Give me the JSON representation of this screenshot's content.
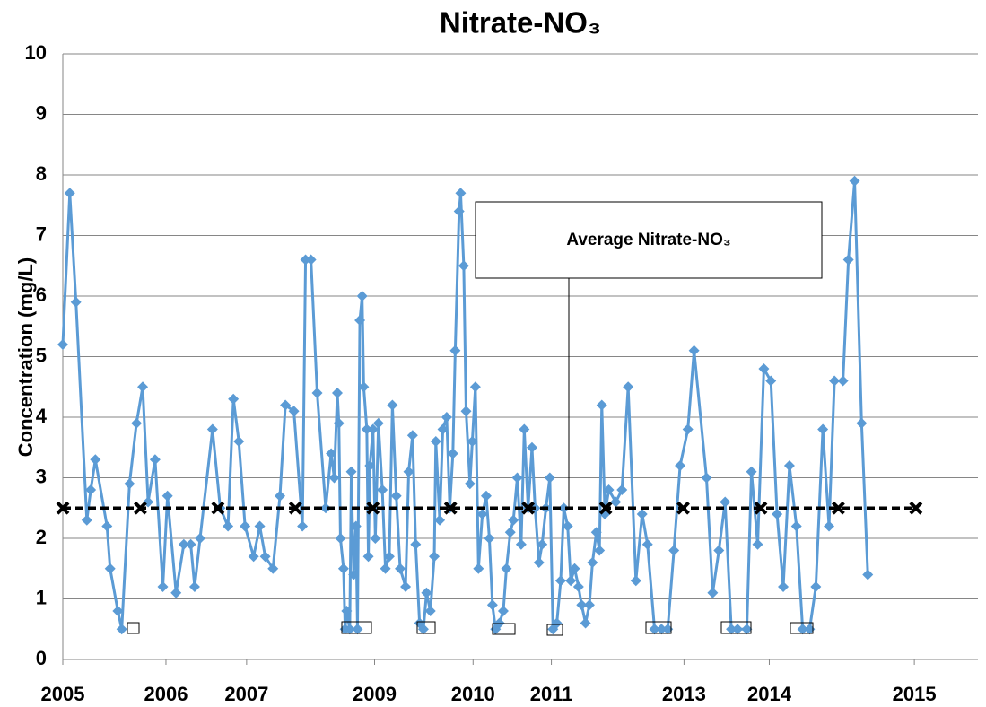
{
  "chart_data": {
    "type": "line",
    "title": "Nitrate-NO₃",
    "y_label": "Concentration (mg/L)",
    "xlim": [
      2005,
      2016.8
    ],
    "ylim": [
      0,
      10
    ],
    "yticks": [
      0,
      1,
      2,
      3,
      4,
      5,
      6,
      7,
      8,
      9,
      10
    ],
    "grid": true,
    "xticks": [
      {
        "value": 2005,
        "label": "2005"
      },
      {
        "value": 2006.33,
        "label": "2006"
      },
      {
        "value": 2007.37,
        "label": "2007"
      },
      {
        "value": 2009.02,
        "label": "2009"
      },
      {
        "value": 2010.29,
        "label": "2010"
      },
      {
        "value": 2011.3,
        "label": "2011"
      },
      {
        "value": 2013.01,
        "label": "2013"
      },
      {
        "value": 2014.11,
        "label": "2014"
      },
      {
        "value": 2015.98,
        "label": "2015"
      }
    ],
    "series": [
      {
        "color": "#5b9bd5",
        "x": [
          2005.0,
          2005.09,
          2005.17,
          2005.31,
          2005.36,
          2005.42,
          2005.57,
          2005.61,
          2005.71,
          2005.76,
          2005.86,
          2005.95,
          2006.03,
          2006.1,
          2006.19,
          2006.29,
          2006.35,
          2006.46,
          2006.56,
          2006.65,
          2006.7,
          2006.77,
          2006.93,
          2007.03,
          2007.13,
          2007.2,
          2007.27,
          2007.35,
          2007.46,
          2007.54,
          2007.61,
          2007.71,
          2007.8,
          2007.87,
          2007.98,
          2008.09,
          2008.13,
          2008.2,
          2008.28,
          2008.39,
          2008.46,
          2008.5,
          2008.54,
          2008.56,
          2008.58,
          2008.62,
          2008.64,
          2008.66,
          2008.7,
          2008.72,
          2008.75,
          2008.78,
          2008.8,
          2008.83,
          2008.86,
          2008.88,
          2008.92,
          2008.94,
          2008.96,
          2009.0,
          2009.03,
          2009.07,
          2009.12,
          2009.16,
          2009.21,
          2009.25,
          2009.3,
          2009.35,
          2009.42,
          2009.46,
          2009.51,
          2009.55,
          2009.6,
          2009.65,
          2009.69,
          2009.74,
          2009.79,
          2009.81,
          2009.86,
          2009.9,
          2009.95,
          2009.99,
          2010.03,
          2010.06,
          2010.11,
          2010.13,
          2010.17,
          2010.2,
          2010.25,
          2010.28,
          2010.32,
          2010.36,
          2010.41,
          2010.46,
          2010.5,
          2010.54,
          2010.58,
          2010.63,
          2010.68,
          2010.72,
          2010.77,
          2010.81,
          2010.86,
          2010.91,
          2010.95,
          2011.0,
          2011.05,
          2011.09,
          2011.14,
          2011.18,
          2011.23,
          2011.28,
          2011.32,
          2011.37,
          2011.42,
          2011.46,
          2011.51,
          2011.55,
          2011.6,
          2011.65,
          2011.69,
          2011.74,
          2011.79,
          2011.83,
          2011.88,
          2011.92,
          2011.95,
          2011.99,
          2012.04,
          2012.13,
          2012.21,
          2012.29,
          2012.39,
          2012.47,
          2012.54,
          2012.63,
          2012.72,
          2012.8,
          2012.88,
          2012.96,
          2013.06,
          2013.14,
          2013.3,
          2013.38,
          2013.46,
          2013.54,
          2013.62,
          2013.7,
          2013.82,
          2013.88,
          2013.96,
          2014.04,
          2014.13,
          2014.21,
          2014.29,
          2014.37,
          2014.46,
          2014.54,
          2014.63,
          2014.71,
          2014.8,
          2014.88,
          2014.95,
          2015.06,
          2015.13,
          2015.21,
          2015.3,
          2015.38
        ],
        "values": [
          5.2,
          7.7,
          5.9,
          2.3,
          2.8,
          3.3,
          2.2,
          1.5,
          0.8,
          0.5,
          2.9,
          3.9,
          4.5,
          2.6,
          3.3,
          1.2,
          2.7,
          1.1,
          1.9,
          1.9,
          1.2,
          2.0,
          3.8,
          2.5,
          2.2,
          4.3,
          3.6,
          2.2,
          1.7,
          2.2,
          1.7,
          1.5,
          2.7,
          4.2,
          4.1,
          2.2,
          6.6,
          6.6,
          4.4,
          2.5,
          3.4,
          3.0,
          4.4,
          3.9,
          2.0,
          1.5,
          0.5,
          0.8,
          0.5,
          3.1,
          1.4,
          2.2,
          0.5,
          5.6,
          6.0,
          4.5,
          3.8,
          1.7,
          3.2,
          3.8,
          2.0,
          3.9,
          2.8,
          1.5,
          1.7,
          4.2,
          2.7,
          1.5,
          1.2,
          3.1,
          3.7,
          1.9,
          0.6,
          0.5,
          1.1,
          0.8,
          1.7,
          3.6,
          2.3,
          3.8,
          4.0,
          2.5,
          3.4,
          5.1,
          7.4,
          7.7,
          6.5,
          4.1,
          2.9,
          3.6,
          4.5,
          1.5,
          2.4,
          2.7,
          2.0,
          0.9,
          0.5,
          0.6,
          0.8,
          1.5,
          2.1,
          2.3,
          3.0,
          1.9,
          3.8,
          2.5,
          3.5,
          2.5,
          1.6,
          1.9,
          2.5,
          3.0,
          0.5,
          0.6,
          1.3,
          2.5,
          2.2,
          1.3,
          1.5,
          1.2,
          0.9,
          0.6,
          0.9,
          1.6,
          2.1,
          1.8,
          4.2,
          2.4,
          2.8,
          2.6,
          2.8,
          4.5,
          1.3,
          2.4,
          1.9,
          0.5,
          0.5,
          0.5,
          1.8,
          3.2,
          3.8,
          5.1,
          3.0,
          1.1,
          1.8,
          2.6,
          0.5,
          0.5,
          0.5,
          3.1,
          1.9,
          4.8,
          4.6,
          2.4,
          1.2,
          3.2,
          2.2,
          0.5,
          0.5,
          1.2,
          3.8,
          2.2,
          4.6,
          4.6,
          6.6,
          7.9,
          3.9,
          1.4
        ]
      },
      {
        "name": "Average Nitrate-NO₃",
        "color": "#000000",
        "dashed": true,
        "x": [
          2005,
          2006,
          2007,
          2008,
          2009,
          2010,
          2011,
          2012,
          2013,
          2014,
          2015,
          2016
        ],
        "values": [
          2.5,
          2.5,
          2.5,
          2.5,
          2.5,
          2.5,
          2.5,
          2.5,
          2.5,
          2.5,
          2.5,
          2.5
        ]
      }
    ]
  }
}
